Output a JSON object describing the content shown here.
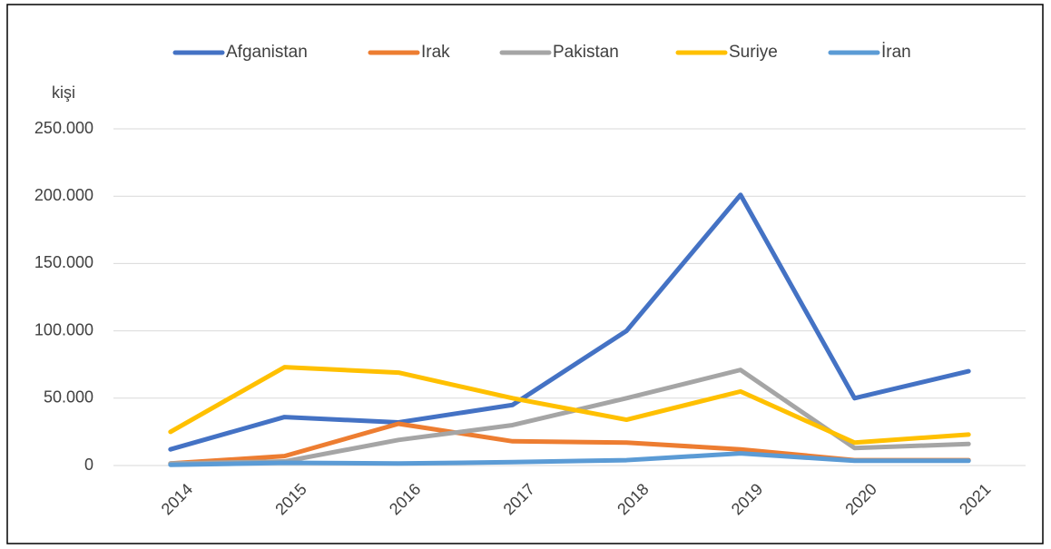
{
  "chart_data": {
    "type": "line",
    "ylabel": "kişi",
    "categories": [
      "2014",
      "2015",
      "2016",
      "2017",
      "2018",
      "2019",
      "2020",
      "2021"
    ],
    "series": [
      {
        "name": "Afganistan",
        "color": "#4472c4",
        "values": [
          12000,
          36000,
          32000,
          45000,
          100000,
          201000,
          50000,
          70000
        ]
      },
      {
        "name": "Irak",
        "color": "#ed7d31",
        "values": [
          1500,
          7000,
          31000,
          18000,
          17000,
          12000,
          4000,
          4000
        ]
      },
      {
        "name": "Pakistan",
        "color": "#a5a5a5",
        "values": [
          1500,
          3000,
          19000,
          30000,
          50000,
          71000,
          13000,
          16000
        ]
      },
      {
        "name": "Suriye",
        "color": "#ffc000",
        "values": [
          25000,
          73000,
          69000,
          50000,
          34000,
          55000,
          17000,
          23000
        ]
      },
      {
        "name": "İran",
        "color": "#5b9bd5",
        "values": [
          500,
          2000,
          1500,
          2500,
          4000,
          9000,
          3500,
          3500
        ]
      }
    ],
    "ylim": [
      0,
      250000
    ],
    "yticks": [
      0,
      {
        "value": 50000,
        "label": "50.000"
      },
      {
        "value": 100000,
        "label": "100.000"
      },
      {
        "value": 150000,
        "label": "150.000"
      },
      {
        "value": 200000,
        "label": "200.000"
      },
      {
        "value": 250000,
        "label": "250.000"
      }
    ],
    "grid": true,
    "legend": "top"
  }
}
